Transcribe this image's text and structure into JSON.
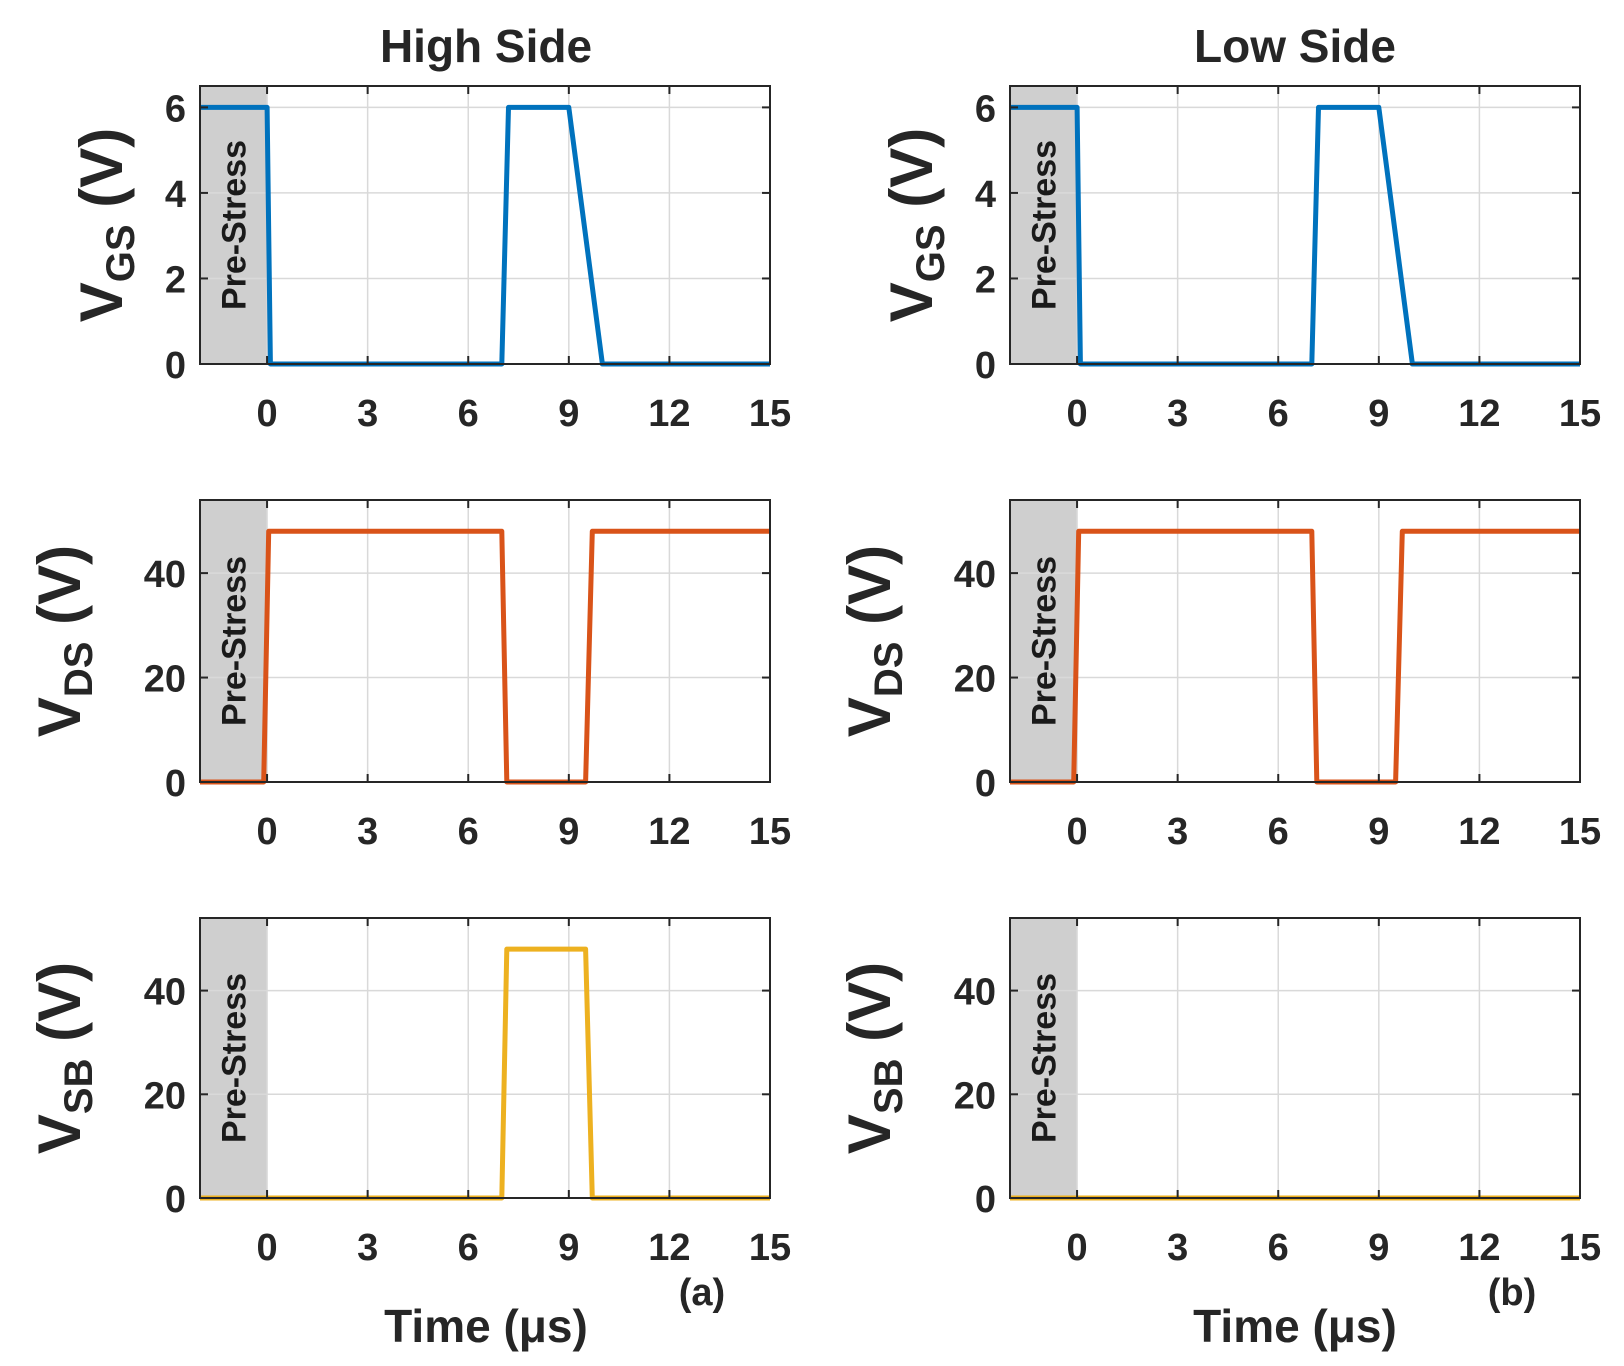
{
  "figure": {
    "columns": [
      {
        "title": "High Side",
        "panel_label": "(a)",
        "xlabel": "Time (μs)"
      },
      {
        "title": "Low Side",
        "panel_label": "(b)",
        "xlabel": "Time (μs)"
      }
    ],
    "shaded_region": {
      "label": "Pre-Stress",
      "x_start": -2,
      "x_end": 0
    }
  },
  "chart_data": [
    {
      "type": "line",
      "column": "High Side",
      "row": 0,
      "ylabel": "V",
      "ylabel_sub": "GS",
      "ylabel_unit": "(V)",
      "xlim": [
        -2,
        15
      ],
      "ylim": [
        0,
        6.5
      ],
      "xticks": [
        0,
        3,
        6,
        9,
        12,
        15
      ],
      "yticks": [
        0,
        2,
        4,
        6
      ],
      "color": "#0072BD",
      "series": [
        {
          "name": "VGS",
          "x": [
            -2,
            0,
            0.1,
            7,
            7.2,
            9,
            10,
            15
          ],
          "y": [
            6,
            6,
            0,
            0,
            6,
            6,
            0,
            0
          ]
        }
      ]
    },
    {
      "type": "line",
      "column": "Low Side",
      "row": 0,
      "ylabel": "V",
      "ylabel_sub": "GS",
      "ylabel_unit": "(V)",
      "xlim": [
        -2,
        15
      ],
      "ylim": [
        0,
        6.5
      ],
      "xticks": [
        0,
        3,
        6,
        9,
        12,
        15
      ],
      "yticks": [
        0,
        2,
        4,
        6
      ],
      "color": "#0072BD",
      "series": [
        {
          "name": "VGS",
          "x": [
            -2,
            0,
            0.1,
            7,
            7.2,
            9,
            10,
            15
          ],
          "y": [
            6,
            6,
            0,
            0,
            6,
            6,
            0,
            0
          ]
        }
      ]
    },
    {
      "type": "line",
      "column": "High Side",
      "row": 1,
      "ylabel": "V",
      "ylabel_sub": "DS",
      "ylabel_unit": "(V)",
      "xlim": [
        -2,
        15
      ],
      "ylim": [
        0,
        54
      ],
      "xticks": [
        0,
        3,
        6,
        9,
        12,
        15
      ],
      "yticks": [
        0,
        20,
        40
      ],
      "color": "#D95319",
      "series": [
        {
          "name": "VDS",
          "x": [
            -2,
            -0.1,
            0.05,
            7,
            7.15,
            9.5,
            9.7,
            15
          ],
          "y": [
            0,
            0,
            48,
            48,
            0,
            0,
            48,
            48
          ]
        }
      ]
    },
    {
      "type": "line",
      "column": "Low Side",
      "row": 1,
      "ylabel": "V",
      "ylabel_sub": "DS",
      "ylabel_unit": "(V)",
      "xlim": [
        -2,
        15
      ],
      "ylim": [
        0,
        54
      ],
      "xticks": [
        0,
        3,
        6,
        9,
        12,
        15
      ],
      "yticks": [
        0,
        20,
        40
      ],
      "color": "#D95319",
      "series": [
        {
          "name": "VDS",
          "x": [
            -2,
            -0.1,
            0.05,
            7,
            7.15,
            9.5,
            9.7,
            15
          ],
          "y": [
            0,
            0,
            48,
            48,
            0,
            0,
            48,
            48
          ]
        }
      ]
    },
    {
      "type": "line",
      "column": "High Side",
      "row": 2,
      "ylabel": "V",
      "ylabel_sub": "SB",
      "ylabel_unit": "(V)",
      "xlim": [
        -2,
        15
      ],
      "ylim": [
        0,
        54
      ],
      "xticks": [
        0,
        3,
        6,
        9,
        12,
        15
      ],
      "yticks": [
        0,
        20,
        40
      ],
      "color": "#EDB120",
      "series": [
        {
          "name": "VSB",
          "x": [
            -2,
            7,
            7.15,
            9.5,
            9.7,
            15
          ],
          "y": [
            0,
            0,
            48,
            48,
            0,
            0
          ]
        }
      ]
    },
    {
      "type": "line",
      "column": "Low Side",
      "row": 2,
      "ylabel": "V",
      "ylabel_sub": "SB",
      "ylabel_unit": "(V)",
      "xlim": [
        -2,
        15
      ],
      "ylim": [
        0,
        54
      ],
      "xticks": [
        0,
        3,
        6,
        9,
        12,
        15
      ],
      "yticks": [
        0,
        20,
        40
      ],
      "color": "#EDB120",
      "series": [
        {
          "name": "VSB",
          "x": [
            -2,
            15
          ],
          "y": [
            0,
            0
          ]
        }
      ]
    }
  ]
}
